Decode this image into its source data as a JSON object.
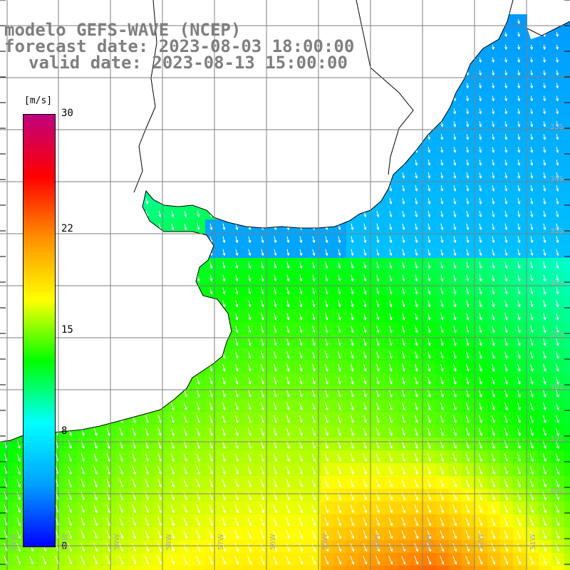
{
  "title": {
    "line1": "modelo GEFS-WAVE (NCEP)",
    "line2": "forecast date: 2023-08-03 18:00:00",
    "line3": "valid date: 2023-08-13 15:00:00"
  },
  "colorbar": {
    "unit": "[m/s]",
    "ticks": [
      {
        "label": "30",
        "value": 30
      },
      {
        "label": "22",
        "value": 22
      },
      {
        "label": "15",
        "value": 15
      },
      {
        "label": "8",
        "value": 8
      },
      {
        "label": "0",
        "value": 0
      }
    ],
    "range": [
      0,
      30
    ],
    "colors": [
      "#0000ff",
      "#00a0ff",
      "#00ffff",
      "#00ff00",
      "#ffff00",
      "#ff9000",
      "#ff0000",
      "#c00080"
    ]
  },
  "map": {
    "lat_labels": [
      "33S",
      "34S",
      "35S",
      "36S",
      "37S",
      "38S",
      "39S",
      "40S"
    ],
    "lon_labels": [
      "61W",
      "60W",
      "59W",
      "58W",
      "57W",
      "56W",
      "55W",
      "54W",
      "53W",
      "52W",
      "51W"
    ],
    "land_color": "#ffffff",
    "grid_color": "#7f7f7f",
    "arrow_color": "#ffffff"
  }
}
